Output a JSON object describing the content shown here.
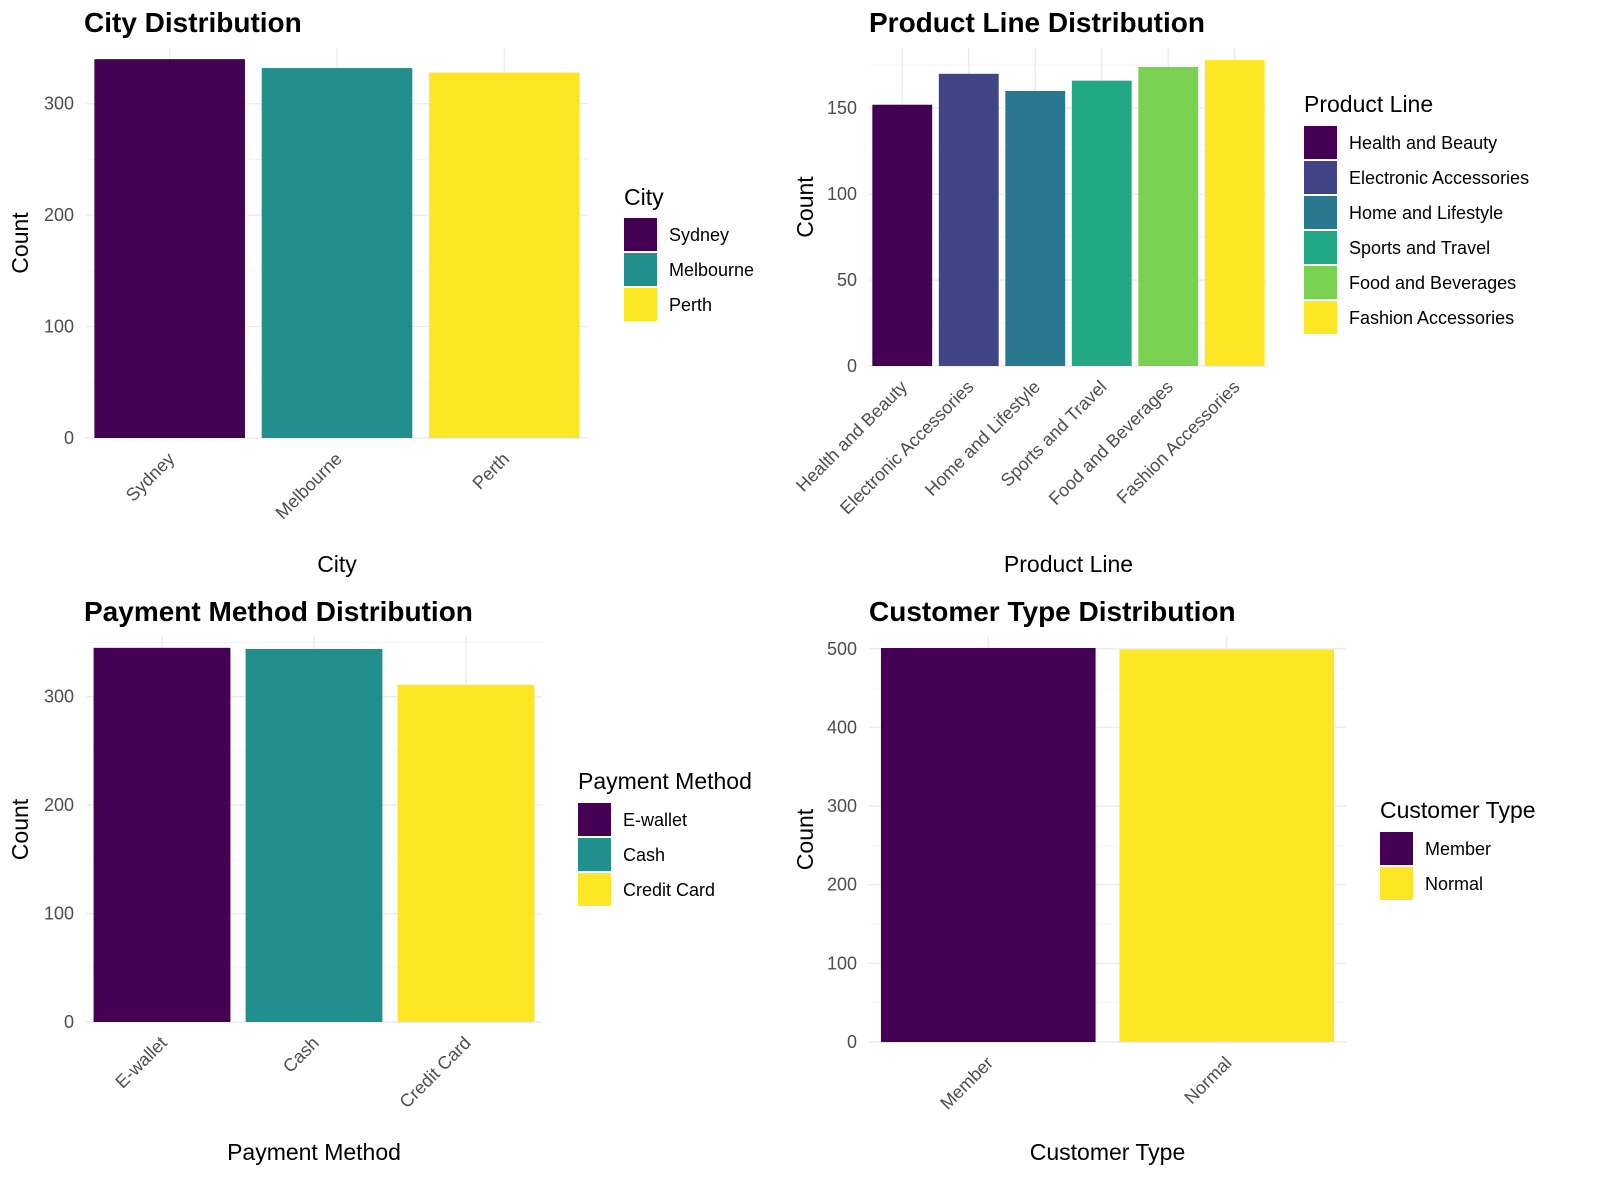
{
  "chart_data": [
    {
      "type": "bar",
      "title": "City Distribution",
      "xlabel": "City",
      "ylabel": "Count",
      "categories": [
        "Sydney",
        "Melbourne",
        "Perth"
      ],
      "values": [
        340,
        332,
        328
      ],
      "colors": [
        "#440154",
        "#21908C",
        "#FDE725"
      ],
      "ylim": [
        0,
        350
      ],
      "yticks": [
        0,
        100,
        200,
        300
      ],
      "grid": true,
      "legend": {
        "title": "City",
        "position": "right"
      }
    },
    {
      "type": "bar",
      "title": "Product Line Distribution",
      "xlabel": "Product Line",
      "ylabel": "Count",
      "categories": [
        "Health and Beauty",
        "Electronic Accessories",
        "Home and Lifestyle",
        "Sports and Travel",
        "Food and Beverages",
        "Fashion Accessories"
      ],
      "values": [
        152,
        170,
        160,
        166,
        174,
        178
      ],
      "colors": [
        "#440154",
        "#414487",
        "#2A788E",
        "#22A884",
        "#7AD151",
        "#FDE725"
      ],
      "ylim": [
        0,
        185
      ],
      "yticks": [
        0,
        50,
        100,
        150
      ],
      "grid": true,
      "legend": {
        "title": "Product Line",
        "position": "right"
      }
    },
    {
      "type": "bar",
      "title": "Payment Method Distribution",
      "xlabel": "Payment Method",
      "ylabel": "Count",
      "categories": [
        "E-wallet",
        "Cash",
        "Credit Card"
      ],
      "values": [
        345,
        344,
        311
      ],
      "colors": [
        "#440154",
        "#21908C",
        "#FDE725"
      ],
      "ylim": [
        0,
        355
      ],
      "yticks": [
        0,
        100,
        200,
        300
      ],
      "grid": true,
      "legend": {
        "title": "Payment Method",
        "position": "right"
      }
    },
    {
      "type": "bar",
      "title": "Customer Type Distribution",
      "xlabel": "Customer Type",
      "ylabel": "Count",
      "categories": [
        "Member",
        "Normal"
      ],
      "values": [
        501,
        499
      ],
      "colors": [
        "#440154",
        "#FDE725"
      ],
      "ylim": [
        0,
        515
      ],
      "yticks": [
        0,
        100,
        200,
        300,
        400,
        500
      ],
      "grid": true,
      "legend": {
        "title": "Customer Type",
        "position": "right"
      }
    }
  ]
}
